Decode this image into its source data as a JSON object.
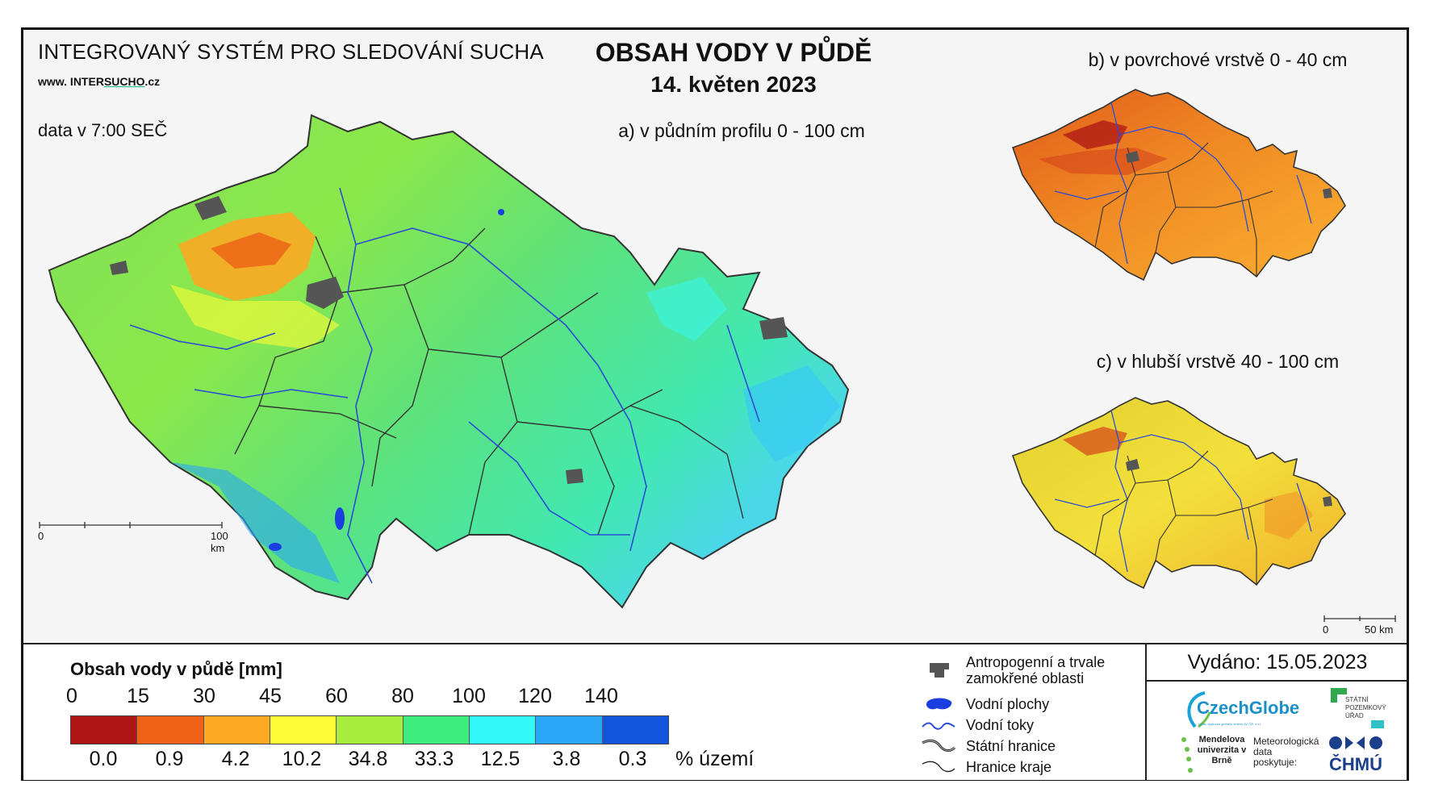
{
  "header": {
    "system_title": "INTEGROVANÝ SYSTÉM PRO SLEDOVÁNÍ SUCHA",
    "website_prefix": "www. INTER",
    "website_highlight": "SUCHO",
    "website_suffix": ".cz",
    "data_time": "data v 7:00 SEČ",
    "title": "OBSAH VODY V PŮDĚ",
    "date": "14. květen 2023"
  },
  "panels": {
    "a": {
      "label": "a) v půdním profilu 0 - 100 cm",
      "scale_start": "0",
      "scale_end": "100 km"
    },
    "b": {
      "label": "b) v povrchové vrstvě 0 - 40 cm"
    },
    "c": {
      "label": "c) v hlubší vrstvě 40 - 100 cm",
      "scale_start": "0",
      "scale_end": "50 km"
    }
  },
  "legend": {
    "title": "Obsah vody v půdě  [mm]",
    "breaks": [
      "0",
      "15",
      "30",
      "45",
      "60",
      "80",
      "100",
      "120",
      "140"
    ],
    "colors": [
      "#ae1414",
      "#ee6218",
      "#fba924",
      "#fdfd36",
      "#a7ee3c",
      "#3eec7e",
      "#33fafa",
      "#2aa6f6",
      "#1155dd"
    ],
    "percent_area": [
      "0.0",
      "0.9",
      "4.2",
      "10.2",
      "34.8",
      "33.3",
      "12.5",
      "3.8",
      "0.3"
    ],
    "percent_unit": "% území"
  },
  "overlays": {
    "anthropogenic": "Antropogenní a trvale zamokřené oblasti",
    "water_bodies": "Vodní plochy",
    "streams": "Vodní toky",
    "state_border": "Státní hranice",
    "region_border": "Hranice kraje",
    "colors": {
      "anthropogenic": "#555555",
      "water": "#1a3ee0",
      "stream": "#2b4cd6"
    }
  },
  "footer": {
    "issued": "Vydáno: 15.05.2023",
    "czechglobe": "CzechGlobe",
    "czechglobe_sub": "Ústav výzkumu globální změny AV ČR, v.v.i.",
    "spu": "STÁTNÍ POZEMKOVÝ ÚŘAD",
    "mendelu": "Mendelova univerzita v Brně",
    "meteo": "Meteorologická data poskytuje:",
    "chmu": "ČHMÚ"
  }
}
